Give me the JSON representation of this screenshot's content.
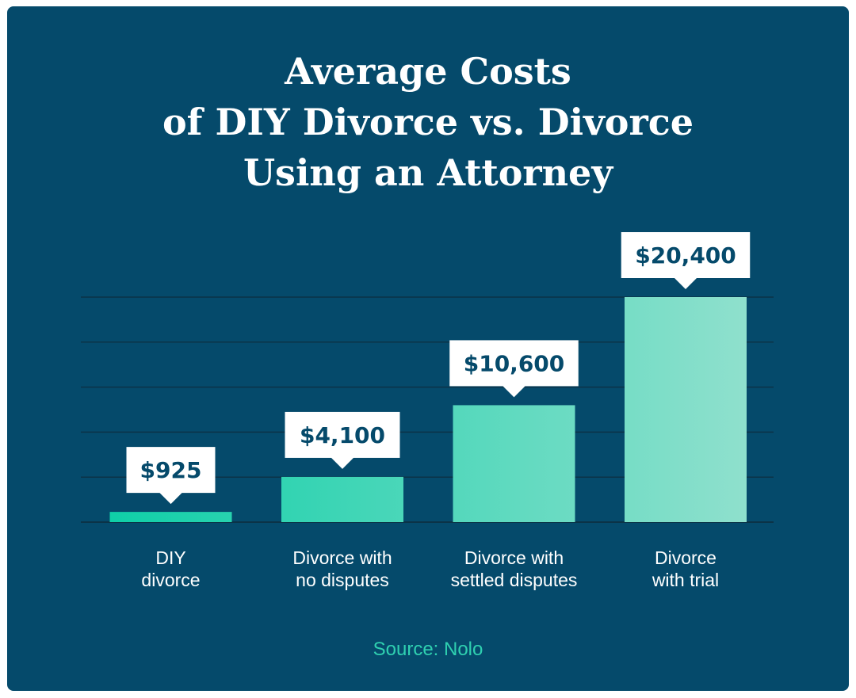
{
  "title_lines": [
    "Average Costs",
    "of DIY Divorce vs. Divorce",
    "Using an Attorney"
  ],
  "source": "Source: Nolo",
  "colors": {
    "background": "#054a6b",
    "bar_start": "#0fcfa8",
    "bar_end": "#8fe0cd",
    "label_box": "#ffffff",
    "label_text": "#054a6b",
    "grid": "#0b3347",
    "source": "#2fd0b0"
  },
  "chart_data": {
    "type": "bar",
    "title": "Average Costs of DIY Divorce vs. Divorce Using an Attorney",
    "categories": [
      [
        "DIY",
        "divorce"
      ],
      [
        "Divorce with",
        "no disputes"
      ],
      [
        "Divorce with",
        "settled disputes"
      ],
      [
        "Divorce",
        "with trial"
      ]
    ],
    "values": [
      925,
      4100,
      10600,
      20400
    ],
    "data_labels": [
      "$925",
      "$4,100",
      "$10,600",
      "$20,400"
    ],
    "ylim": [
      0,
      20400
    ],
    "grid": true,
    "xlabel": "",
    "ylabel": ""
  }
}
